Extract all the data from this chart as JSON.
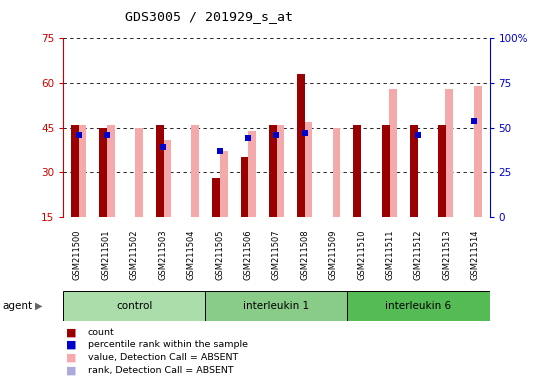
{
  "title": "GDS3005 / 201929_s_at",
  "samples": [
    "GSM211500",
    "GSM211501",
    "GSM211502",
    "GSM211503",
    "GSM211504",
    "GSM211505",
    "GSM211506",
    "GSM211507",
    "GSM211508",
    "GSM211509",
    "GSM211510",
    "GSM211511",
    "GSM211512",
    "GSM211513",
    "GSM211514"
  ],
  "groups": [
    {
      "name": "control",
      "indices": [
        0,
        1,
        2,
        3,
        4
      ],
      "color": "#aaddaa"
    },
    {
      "name": "interleukin 1",
      "indices": [
        5,
        6,
        7,
        8,
        9
      ],
      "color": "#88cc88"
    },
    {
      "name": "interleukin 6",
      "indices": [
        10,
        11,
        12,
        13,
        14
      ],
      "color": "#55bb55"
    }
  ],
  "count_values": [
    46,
    45,
    null,
    46,
    null,
    28,
    35,
    46,
    63,
    null,
    46,
    46,
    46,
    46,
    null
  ],
  "count_is_absent": [
    false,
    false,
    true,
    false,
    true,
    false,
    false,
    false,
    false,
    true,
    false,
    false,
    false,
    false,
    true
  ],
  "rank_values": [
    46,
    46,
    45,
    41,
    46,
    37,
    44,
    46,
    47,
    45,
    null,
    58,
    null,
    58,
    59
  ],
  "rank_is_absent": [
    false,
    false,
    false,
    false,
    false,
    false,
    false,
    false,
    false,
    false,
    true,
    false,
    true,
    false,
    false
  ],
  "percentile_values": [
    46,
    46,
    null,
    39,
    null,
    37,
    44,
    46,
    47,
    null,
    null,
    null,
    46,
    null,
    54
  ],
  "percentile_is_absent": [
    false,
    false,
    true,
    false,
    true,
    false,
    false,
    false,
    false,
    true,
    true,
    true,
    false,
    true,
    false
  ],
  "ylim_left": [
    15,
    75
  ],
  "ylim_right": [
    0,
    100
  ],
  "yticks_left": [
    15,
    30,
    45,
    60,
    75
  ],
  "yticks_right": [
    0,
    25,
    50,
    75,
    100
  ],
  "ytick_labels_left": [
    "15",
    "30",
    "45",
    "60",
    "75"
  ],
  "ytick_labels_right": [
    "0",
    "25",
    "50",
    "75",
    "100%"
  ],
  "bar_color_dark_red": "#9b0000",
  "bar_color_pink": "#f4aaaa",
  "dot_color_blue": "#0000cc",
  "dot_color_light_blue": "#aaaadd",
  "tick_bg_color": "#cccccc",
  "left_color": "#cc0000",
  "right_color": "#0000cc"
}
